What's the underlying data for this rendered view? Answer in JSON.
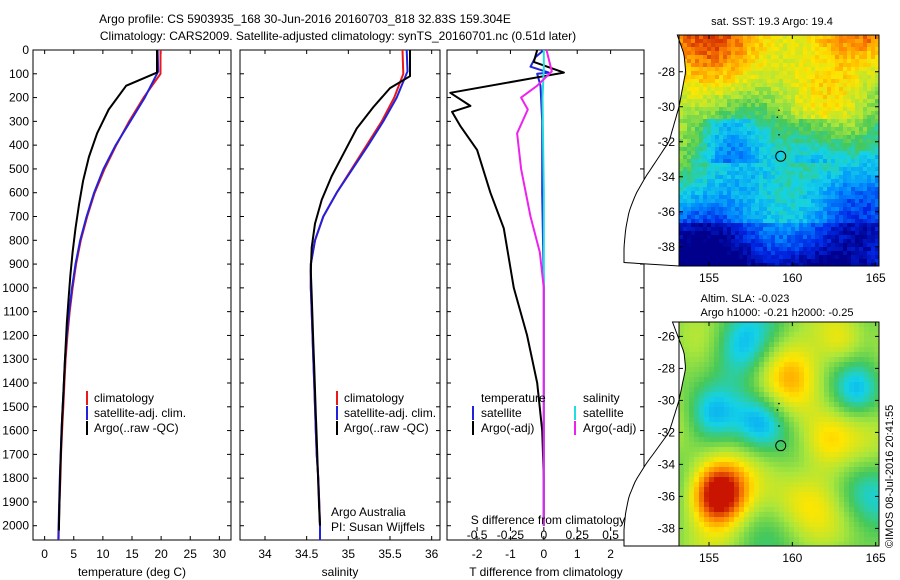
{
  "title": {
    "line1": "Argo profile: CS 5903935_168 30-Jun-2016 20160703_818 32.83S 159.304E",
    "line2": "Climatology: CARS2009. Satellite-adjusted climatology: synTS_20160701.nc (0.51d later)"
  },
  "depth_axis": {
    "ticks": [
      0,
      100,
      200,
      300,
      400,
      500,
      600,
      700,
      800,
      900,
      1000,
      1100,
      1200,
      1300,
      1400,
      1500,
      1600,
      1700,
      1800,
      1900,
      2000
    ],
    "ylim": [
      0,
      2060
    ]
  },
  "chart_data": [
    {
      "type": "line",
      "panel": "temperature",
      "xlabel": "temperature (deg C)",
      "xlim": [
        -2,
        32
      ],
      "xticks": [
        0,
        5,
        10,
        15,
        20,
        25,
        30
      ],
      "legend": [
        "climatology",
        "satellite-adj. clim.",
        "Argo(..raw -QC)"
      ],
      "series": [
        {
          "name": "climatology",
          "color": "#e8181b",
          "points": [
            [
              19.9,
              0
            ],
            [
              19.9,
              100
            ],
            [
              17,
              200
            ],
            [
              14.5,
              300
            ],
            [
              12.3,
              400
            ],
            [
              10.3,
              500
            ],
            [
              8.6,
              600
            ],
            [
              7.3,
              700
            ],
            [
              6.2,
              800
            ],
            [
              5.4,
              900
            ],
            [
              4.8,
              1000
            ],
            [
              4.3,
              1100
            ],
            [
              3.9,
              1200
            ],
            [
              3.6,
              1300
            ],
            [
              3.4,
              1400
            ],
            [
              3.2,
              1500
            ],
            [
              3.0,
              1600
            ],
            [
              2.8,
              1700
            ],
            [
              2.7,
              1800
            ],
            [
              2.55,
              1900
            ],
            [
              2.45,
              2000
            ],
            [
              2.4,
              2060
            ]
          ]
        },
        {
          "name": "satellite-adj. clim.",
          "color": "#2222dd",
          "points": [
            [
              19.4,
              0
            ],
            [
              19.5,
              90
            ],
            [
              17.2,
              200
            ],
            [
              14.7,
              300
            ],
            [
              12.2,
              400
            ],
            [
              10.1,
              500
            ],
            [
              8.5,
              600
            ],
            [
              7.2,
              700
            ],
            [
              6.1,
              800
            ],
            [
              5.3,
              900
            ],
            [
              4.7,
              1000
            ],
            [
              4.2,
              1100
            ],
            [
              3.8,
              1200
            ],
            [
              3.5,
              1300
            ],
            [
              3.3,
              1400
            ],
            [
              3.1,
              1500
            ],
            [
              2.9,
              1600
            ],
            [
              2.75,
              1700
            ],
            [
              2.6,
              1800
            ],
            [
              2.5,
              1900
            ],
            [
              2.4,
              2000
            ],
            [
              2.35,
              2060
            ]
          ]
        },
        {
          "name": "Argo(..raw -QC)",
          "color": "#000000",
          "points": [
            [
              19.3,
              0
            ],
            [
              19.3,
              95
            ],
            [
              14,
              150
            ],
            [
              11,
              250
            ],
            [
              9,
              350
            ],
            [
              7.6,
              450
            ],
            [
              6.6,
              550
            ],
            [
              5.9,
              650
            ],
            [
              5.3,
              750
            ],
            [
              4.8,
              850
            ],
            [
              4.4,
              950
            ],
            [
              4.1,
              1050
            ],
            [
              3.8,
              1150
            ],
            [
              3.6,
              1250
            ],
            [
              3.4,
              1350
            ],
            [
              3.2,
              1450
            ],
            [
              3.0,
              1550
            ],
            [
              2.85,
              1650
            ],
            [
              2.7,
              1750
            ],
            [
              2.6,
              1850
            ],
            [
              2.5,
              1950
            ],
            [
              2.45,
              2020
            ]
          ]
        }
      ]
    },
    {
      "type": "line",
      "panel": "salinity",
      "xlabel": "salinity",
      "xlim": [
        33.7,
        36.1
      ],
      "xticks": [
        34,
        34.5,
        35,
        35.5,
        36
      ],
      "legend": [
        "climatology",
        "satellite-adj. clim.",
        "Argo(..raw -QC)"
      ],
      "series": [
        {
          "name": "climatology",
          "color": "#e8181b",
          "points": [
            [
              35.65,
              0
            ],
            [
              35.66,
              100
            ],
            [
              35.55,
              200
            ],
            [
              35.4,
              300
            ],
            [
              35.22,
              400
            ],
            [
              35.04,
              500
            ],
            [
              34.86,
              600
            ],
            [
              34.7,
              700
            ],
            [
              34.6,
              800
            ],
            [
              34.55,
              900
            ],
            [
              34.55,
              1000
            ],
            [
              34.56,
              1100
            ],
            [
              34.57,
              1200
            ],
            [
              34.58,
              1300
            ],
            [
              34.59,
              1400
            ],
            [
              34.6,
              1500
            ],
            [
              34.61,
              1600
            ],
            [
              34.62,
              1700
            ],
            [
              34.64,
              1800
            ],
            [
              34.65,
              1900
            ],
            [
              34.66,
              2000
            ],
            [
              34.66,
              2060
            ]
          ]
        },
        {
          "name": "satellite-adj. clim.",
          "color": "#2222dd",
          "points": [
            [
              35.7,
              0
            ],
            [
              35.71,
              90
            ],
            [
              35.58,
              200
            ],
            [
              35.42,
              300
            ],
            [
              35.24,
              400
            ],
            [
              35.05,
              500
            ],
            [
              34.86,
              600
            ],
            [
              34.7,
              700
            ],
            [
              34.6,
              800
            ],
            [
              34.55,
              900
            ],
            [
              34.55,
              1000
            ],
            [
              34.56,
              1100
            ],
            [
              34.57,
              1200
            ],
            [
              34.58,
              1300
            ],
            [
              34.59,
              1400
            ],
            [
              34.6,
              1500
            ],
            [
              34.61,
              1600
            ],
            [
              34.62,
              1700
            ],
            [
              34.64,
              1800
            ],
            [
              34.65,
              1900
            ],
            [
              34.66,
              2000
            ],
            [
              34.66,
              2060
            ]
          ]
        },
        {
          "name": "Argo(..raw -QC)",
          "color": "#000000",
          "points": [
            [
              35.74,
              0
            ],
            [
              35.74,
              110
            ],
            [
              35.5,
              160
            ],
            [
              35.3,
              240
            ],
            [
              35.1,
              330
            ],
            [
              34.95,
              430
            ],
            [
              34.8,
              530
            ],
            [
              34.68,
              630
            ],
            [
              34.6,
              730
            ],
            [
              34.56,
              830
            ],
            [
              34.55,
              930
            ],
            [
              34.56,
              1030
            ],
            [
              34.57,
              1130
            ],
            [
              34.58,
              1230
            ],
            [
              34.59,
              1330
            ],
            [
              34.6,
              1430
            ],
            [
              34.61,
              1530
            ],
            [
              34.62,
              1630
            ],
            [
              34.63,
              1730
            ],
            [
              34.64,
              1830
            ],
            [
              34.65,
              1930
            ],
            [
              34.66,
              2000
            ]
          ]
        }
      ],
      "credit": [
        "Argo Australia",
        "PI: Susan Wijffels"
      ]
    },
    {
      "type": "line",
      "panel": "difference",
      "xlabel_top": "S difference from climatology",
      "xlabel": "T difference from climatology",
      "xlim": [
        -2.9,
        3.0
      ],
      "xticks": [
        -2,
        -1,
        0,
        1,
        2
      ],
      "xtick_labels": [
        "-2",
        "-1",
        "0",
        "1",
        "2"
      ],
      "sticks": [
        -0.5,
        -0.25,
        0,
        0.25,
        0.5
      ],
      "stick_labels": [
        "-0.5",
        "-0.25",
        "0",
        "0.25",
        "0.5"
      ],
      "s_scale": 4,
      "legend_titles": [
        "temperature",
        "salinity"
      ],
      "legend": [
        "satellite",
        "Argo(-adj)",
        "satellite",
        "Argo(-adj)"
      ],
      "series": [
        {
          "name": "temperature satellite",
          "color": "#2222dd",
          "kind": "T",
          "points": [
            [
              0,
              0
            ],
            [
              -0.25,
              30
            ],
            [
              -0.4,
              70
            ],
            [
              0.15,
              95
            ],
            [
              -0.2,
              100
            ],
            [
              -0.1,
              150
            ],
            [
              -0.05,
              300
            ],
            [
              -0.05,
              600
            ],
            [
              0,
              1000
            ],
            [
              0,
              1500
            ],
            [
              0,
              2000
            ]
          ]
        },
        {
          "name": "temperature Argo(-adj)",
          "color": "#000000",
          "kind": "T",
          "points": [
            [
              -0.2,
              0
            ],
            [
              -0.3,
              50
            ],
            [
              0.6,
              95
            ],
            [
              0,
              110
            ],
            [
              -2.8,
              180
            ],
            [
              -2.2,
              235
            ],
            [
              -2.75,
              260
            ],
            [
              -2.5,
              320
            ],
            [
              -2.0,
              420
            ],
            [
              -1.6,
              600
            ],
            [
              -1.2,
              750
            ],
            [
              -0.9,
              1000
            ],
            [
              -0.5,
              1200
            ],
            [
              -0.2,
              1400
            ],
            [
              -0.05,
              1600
            ],
            [
              0,
              1800
            ],
            [
              0,
              2000
            ]
          ]
        },
        {
          "name": "salinity satellite",
          "color": "#22dddd",
          "kind": "S",
          "points": [
            [
              0,
              0
            ],
            [
              0,
              80
            ],
            [
              -0.01,
              200
            ],
            [
              0,
              600
            ],
            [
              0,
              1000
            ],
            [
              0,
              1500
            ],
            [
              0,
              2000
            ]
          ]
        },
        {
          "name": "salinity Argo(-adj)",
          "color": "#ee22ee",
          "kind": "S",
          "points": [
            [
              0.02,
              0
            ],
            [
              0.06,
              90
            ],
            [
              -0.05,
              150
            ],
            [
              -0.17,
              200
            ],
            [
              -0.12,
              250
            ],
            [
              -0.2,
              350
            ],
            [
              -0.17,
              500
            ],
            [
              -0.1,
              700
            ],
            [
              -0.03,
              850
            ],
            [
              0,
              1000
            ],
            [
              0,
              2000
            ]
          ]
        }
      ]
    },
    {
      "type": "heatmap",
      "panel": "sst_map",
      "title": "sat. SST: 19.3 Argo: 19.4",
      "xticks": [
        155,
        160,
        165
      ],
      "yticks": [
        -28,
        -30,
        -32,
        -34,
        -36,
        -38
      ],
      "xlim": [
        153.2,
        165.2
      ],
      "ylim": [
        -39.1,
        -25.9
      ],
      "argo_location": [
        159.304,
        -32.83
      ]
    },
    {
      "type": "heatmap",
      "panel": "sla_map",
      "title_line1": "Altim. SLA: -0.023",
      "title_line2": "Argo h1000: -0.21 h2000: -0.25",
      "xticks": [
        155,
        160,
        165
      ],
      "yticks": [
        -26,
        -28,
        -30,
        -32,
        -34,
        -36,
        -38
      ],
      "xlim": [
        153.2,
        165.2
      ],
      "ylim": [
        -39.1,
        -25.1
      ],
      "argo_location": [
        159.304,
        -32.83
      ]
    }
  ],
  "footer": "©IMOS 08-Jul-2016 20:41:55"
}
